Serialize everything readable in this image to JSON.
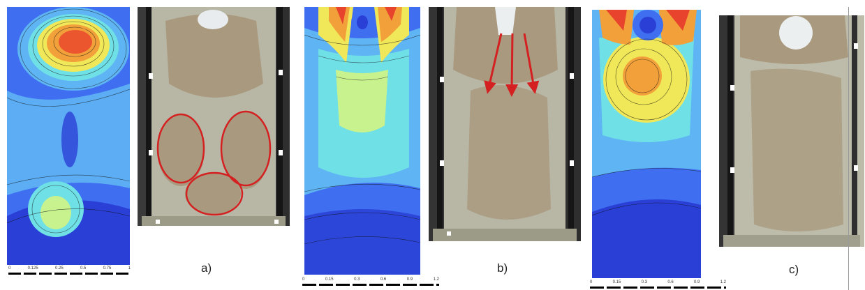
{
  "captions": {
    "a": "a)",
    "b": "b)",
    "c": "c)"
  },
  "scales": {
    "a": [
      "0",
      "0.125",
      "0.25",
      "0.5",
      "0.75",
      "1"
    ],
    "b": [
      "0",
      "0.15",
      "0.3",
      "0.6",
      "0.9",
      "1.2"
    ],
    "c": [
      "0",
      "0.15",
      "0.3",
      "0.6",
      "0.9",
      "1.2"
    ]
  },
  "colors": {
    "deep_blue": "#2a3fd6",
    "blue": "#3f6ff0",
    "light_blue": "#5fb4f4",
    "cyan": "#6fe0e6",
    "yellow": "#f0e858",
    "orange": "#f2a13a",
    "red": "#e8432c",
    "annotation_red": "#d42020",
    "photo_sand": "#a99a7f",
    "photo_water": "#b8b7a6",
    "photo_frame": "#1b1b1b"
  }
}
